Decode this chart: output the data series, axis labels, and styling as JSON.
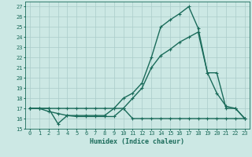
{
  "xlabel": "Humidex (Indice chaleur)",
  "bg_color": "#cce8e4",
  "grid_color": "#aaccca",
  "line_color": "#1a6b5a",
  "xlim": [
    -0.5,
    23.5
  ],
  "ylim": [
    15,
    27.5
  ],
  "xticks": [
    0,
    1,
    2,
    3,
    4,
    5,
    6,
    7,
    8,
    9,
    10,
    11,
    12,
    13,
    14,
    15,
    16,
    17,
    18,
    19,
    20,
    21,
    22,
    23
  ],
  "yticks": [
    15,
    16,
    17,
    18,
    19,
    20,
    21,
    22,
    23,
    24,
    25,
    26,
    27
  ],
  "series1_x": [
    0,
    1,
    2,
    3,
    4,
    5,
    6,
    7,
    8,
    9,
    10,
    11,
    12,
    13,
    14,
    15,
    16,
    17,
    18,
    19,
    20,
    21,
    22,
    23
  ],
  "series1_y": [
    17,
    17,
    17,
    15.5,
    16.3,
    16.2,
    16.2,
    16.2,
    16.2,
    16.2,
    17.0,
    16.0,
    16.0,
    16.0,
    16.0,
    16.0,
    16.0,
    16.0,
    16.0,
    16.0,
    16.0,
    16.0,
    16.0,
    16.0
  ],
  "series2_x": [
    0,
    1,
    2,
    3,
    4,
    5,
    6,
    7,
    8,
    9,
    10,
    11,
    12,
    13,
    14,
    15,
    16,
    17,
    18,
    19,
    20,
    21,
    22,
    23
  ],
  "series2_y": [
    17,
    17,
    17,
    17,
    17,
    17,
    17,
    17,
    17,
    17,
    17,
    18.0,
    19.0,
    21.0,
    22.2,
    22.8,
    23.5,
    24.0,
    24.5,
    20.5,
    20.5,
    17.0,
    17.0,
    16.0
  ],
  "series3_x": [
    0,
    1,
    2,
    3,
    4,
    5,
    6,
    7,
    8,
    9,
    10,
    11,
    12,
    13,
    14,
    15,
    16,
    17,
    18,
    19,
    20,
    21,
    22,
    23
  ],
  "series3_y": [
    17,
    17,
    16.7,
    16.5,
    16.3,
    16.3,
    16.3,
    16.3,
    16.3,
    17.0,
    18.0,
    18.5,
    19.5,
    22.0,
    25.0,
    25.7,
    26.3,
    27.0,
    24.9,
    20.5,
    18.5,
    17.2,
    17.0,
    16.0
  ]
}
